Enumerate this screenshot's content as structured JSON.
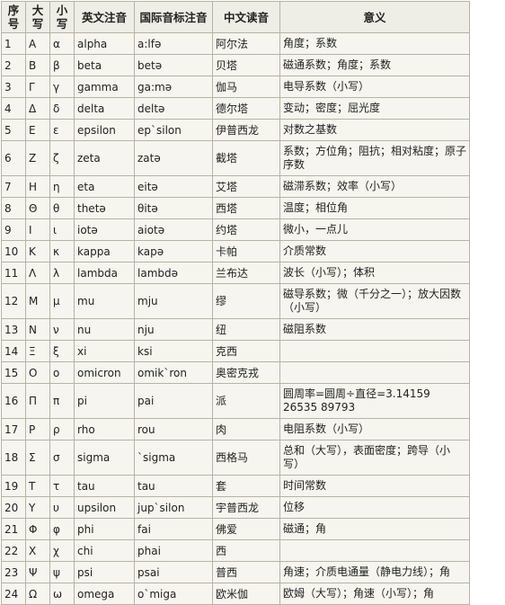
{
  "headers": [
    "序号",
    "大写",
    "小写",
    "英文注音",
    "国际音标注音",
    "中文读音",
    "意义"
  ],
  "rows": [
    {
      "no": "1",
      "upper": "Α",
      "lower": "α",
      "en": "alpha",
      "ipa": "a:lfə",
      "cn": "阿尔法",
      "meaning": "角度；系数"
    },
    {
      "no": "2",
      "upper": "Β",
      "lower": "β",
      "en": "beta",
      "ipa": "betə",
      "cn": "贝塔",
      "meaning": "磁通系数；角度；系数"
    },
    {
      "no": "3",
      "upper": "Γ",
      "lower": "γ",
      "en": "gamma",
      "ipa": "ga:mə",
      "cn": "伽马",
      "meaning": "电导系数（小写）"
    },
    {
      "no": "4",
      "upper": "Δ",
      "lower": "δ",
      "en": "delta",
      "ipa": "deltə",
      "cn": "德尔塔",
      "meaning": "变动；密度；屈光度"
    },
    {
      "no": "5",
      "upper": "Ε",
      "lower": "ε",
      "en": "epsilon",
      "ipa": "ep`silon",
      "cn": "伊普西龙",
      "meaning": "对数之基数"
    },
    {
      "no": "6",
      "upper": "Ζ",
      "lower": "ζ",
      "en": "zeta",
      "ipa": "zatə",
      "cn": "截塔",
      "meaning": "系数；方位角；阻抗；相对粘度；原子序数"
    },
    {
      "no": "7",
      "upper": "Η",
      "lower": "η",
      "en": "eta",
      "ipa": "eitə",
      "cn": "艾塔",
      "meaning": "磁滞系数；效率（小写）"
    },
    {
      "no": "8",
      "upper": "Θ",
      "lower": "θ",
      "en": "thetə",
      "ipa": "θitə",
      "cn": "西塔",
      "meaning": "温度；相位角"
    },
    {
      "no": "9",
      "upper": "Ι",
      "lower": "ι",
      "en": "iotə",
      "ipa": "aiotə",
      "cn": "约塔",
      "meaning": "微小，一点儿"
    },
    {
      "no": "10",
      "upper": "Κ",
      "lower": "κ",
      "en": "kappa",
      "ipa": "kapə",
      "cn": "卡帕",
      "meaning": "介质常数"
    },
    {
      "no": "11",
      "upper": "Λ",
      "lower": "λ",
      "en": "lambda",
      "ipa": "lambdə",
      "cn": "兰布达",
      "meaning": "波长（小写）；体积"
    },
    {
      "no": "12",
      "upper": "Μ",
      "lower": "μ",
      "en": "mu",
      "ipa": "mju",
      "cn": "缪",
      "meaning": "磁导系数；微（千分之一）；放大因数（小写）"
    },
    {
      "no": "13",
      "upper": "Ν",
      "lower": "ν",
      "en": "nu",
      "ipa": "nju",
      "cn": "纽",
      "meaning": "磁阻系数"
    },
    {
      "no": "14",
      "upper": "Ξ",
      "lower": "ξ",
      "en": "xi",
      "ipa": "ksi",
      "cn": "克西",
      "meaning": ""
    },
    {
      "no": "15",
      "upper": "Ο",
      "lower": "ο",
      "en": "omicron",
      "ipa": "omik`ron",
      "cn": "奥密克戎",
      "meaning": ""
    },
    {
      "no": "16",
      "upper": "Π",
      "lower": "π",
      "en": "pi",
      "ipa": "pai",
      "cn": "派",
      "meaning": "圆周率=圆周÷直径=3.14159 26535 89793"
    },
    {
      "no": "17",
      "upper": "Ρ",
      "lower": "ρ",
      "en": "rho",
      "ipa": "rou",
      "cn": "肉",
      "meaning": "电阻系数（小写）"
    },
    {
      "no": "18",
      "upper": "Σ",
      "lower": "σ",
      "en": "sigma",
      "ipa": "`sigma",
      "cn": "西格马",
      "meaning": "总和（大写），表面密度；跨导（小写）"
    },
    {
      "no": "19",
      "upper": "Τ",
      "lower": "τ",
      "en": "tau",
      "ipa": "tau",
      "cn": "套",
      "meaning": "时间常数"
    },
    {
      "no": "20",
      "upper": "Υ",
      "lower": "υ",
      "en": "upsilon",
      "ipa": "jup`silon",
      "cn": "宇普西龙",
      "meaning": "位移"
    },
    {
      "no": "21",
      "upper": "Φ",
      "lower": "φ",
      "en": "phi",
      "ipa": "fai",
      "cn": "佛爱",
      "meaning": "磁通；角"
    },
    {
      "no": "22",
      "upper": "Χ",
      "lower": "χ",
      "en": "chi",
      "ipa": "phai",
      "cn": "西",
      "meaning": ""
    },
    {
      "no": "23",
      "upper": "Ψ",
      "lower": "ψ",
      "en": "psi",
      "ipa": "psai",
      "cn": "普西",
      "meaning": "角速；介质电通量（静电力线）；角"
    },
    {
      "no": "24",
      "upper": "Ω",
      "lower": "ω",
      "en": "omega",
      "ipa": "o`miga",
      "cn": "欧米伽",
      "meaning": "欧姆（大写）；角速（小写）；角"
    }
  ]
}
